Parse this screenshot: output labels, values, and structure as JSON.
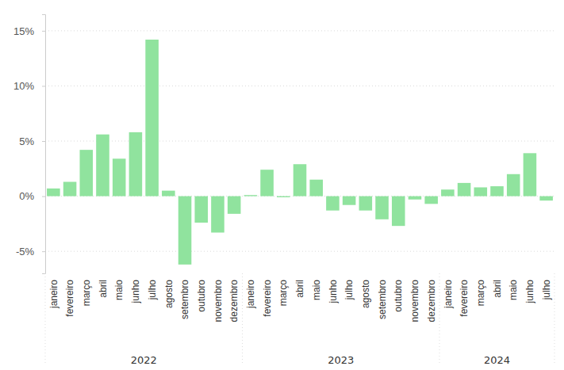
{
  "chart_data": {
    "type": "bar",
    "categories": [
      "janeiro",
      "fevereiro",
      "março",
      "abril",
      "maio",
      "junho",
      "julho",
      "agosto",
      "setembro",
      "outubro",
      "novembro",
      "dezembro",
      "janeiro",
      "fevereiro",
      "março",
      "abril",
      "maio",
      "junho",
      "julho",
      "agosto",
      "setembro",
      "outubro",
      "novembro",
      "dezembro",
      "janeiro",
      "fevereiro",
      "março",
      "abril",
      "maio",
      "junho",
      "julho"
    ],
    "years": [
      "2022",
      "2022",
      "2022",
      "2022",
      "2022",
      "2022",
      "2022",
      "2022",
      "2022",
      "2022",
      "2022",
      "2022",
      "2023",
      "2023",
      "2023",
      "2023",
      "2023",
      "2023",
      "2023",
      "2023",
      "2023",
      "2023",
      "2023",
      "2023",
      "2024",
      "2024",
      "2024",
      "2024",
      "2024",
      "2024",
      "2024"
    ],
    "values": [
      0.7,
      1.3,
      4.2,
      5.6,
      3.4,
      5.8,
      14.2,
      0.5,
      -6.2,
      -2.4,
      -3.3,
      -1.6,
      0.1,
      2.4,
      -0.1,
      2.9,
      1.5,
      -1.3,
      -0.8,
      -1.3,
      -2.1,
      -2.7,
      -0.3,
      -0.7,
      0.6,
      1.2,
      0.8,
      0.9,
      2.0,
      3.9,
      -0.4
    ],
    "color": "#90e39e",
    "ylim": [
      -7,
      16.5
    ],
    "yticks": [
      {
        "value": -5,
        "label": "-5%"
      },
      {
        "value": 0,
        "label": "0%"
      },
      {
        "value": 5,
        "label": "5%"
      },
      {
        "value": 10,
        "label": "10%"
      },
      {
        "value": 15,
        "label": "15%"
      }
    ],
    "grid": true
  }
}
